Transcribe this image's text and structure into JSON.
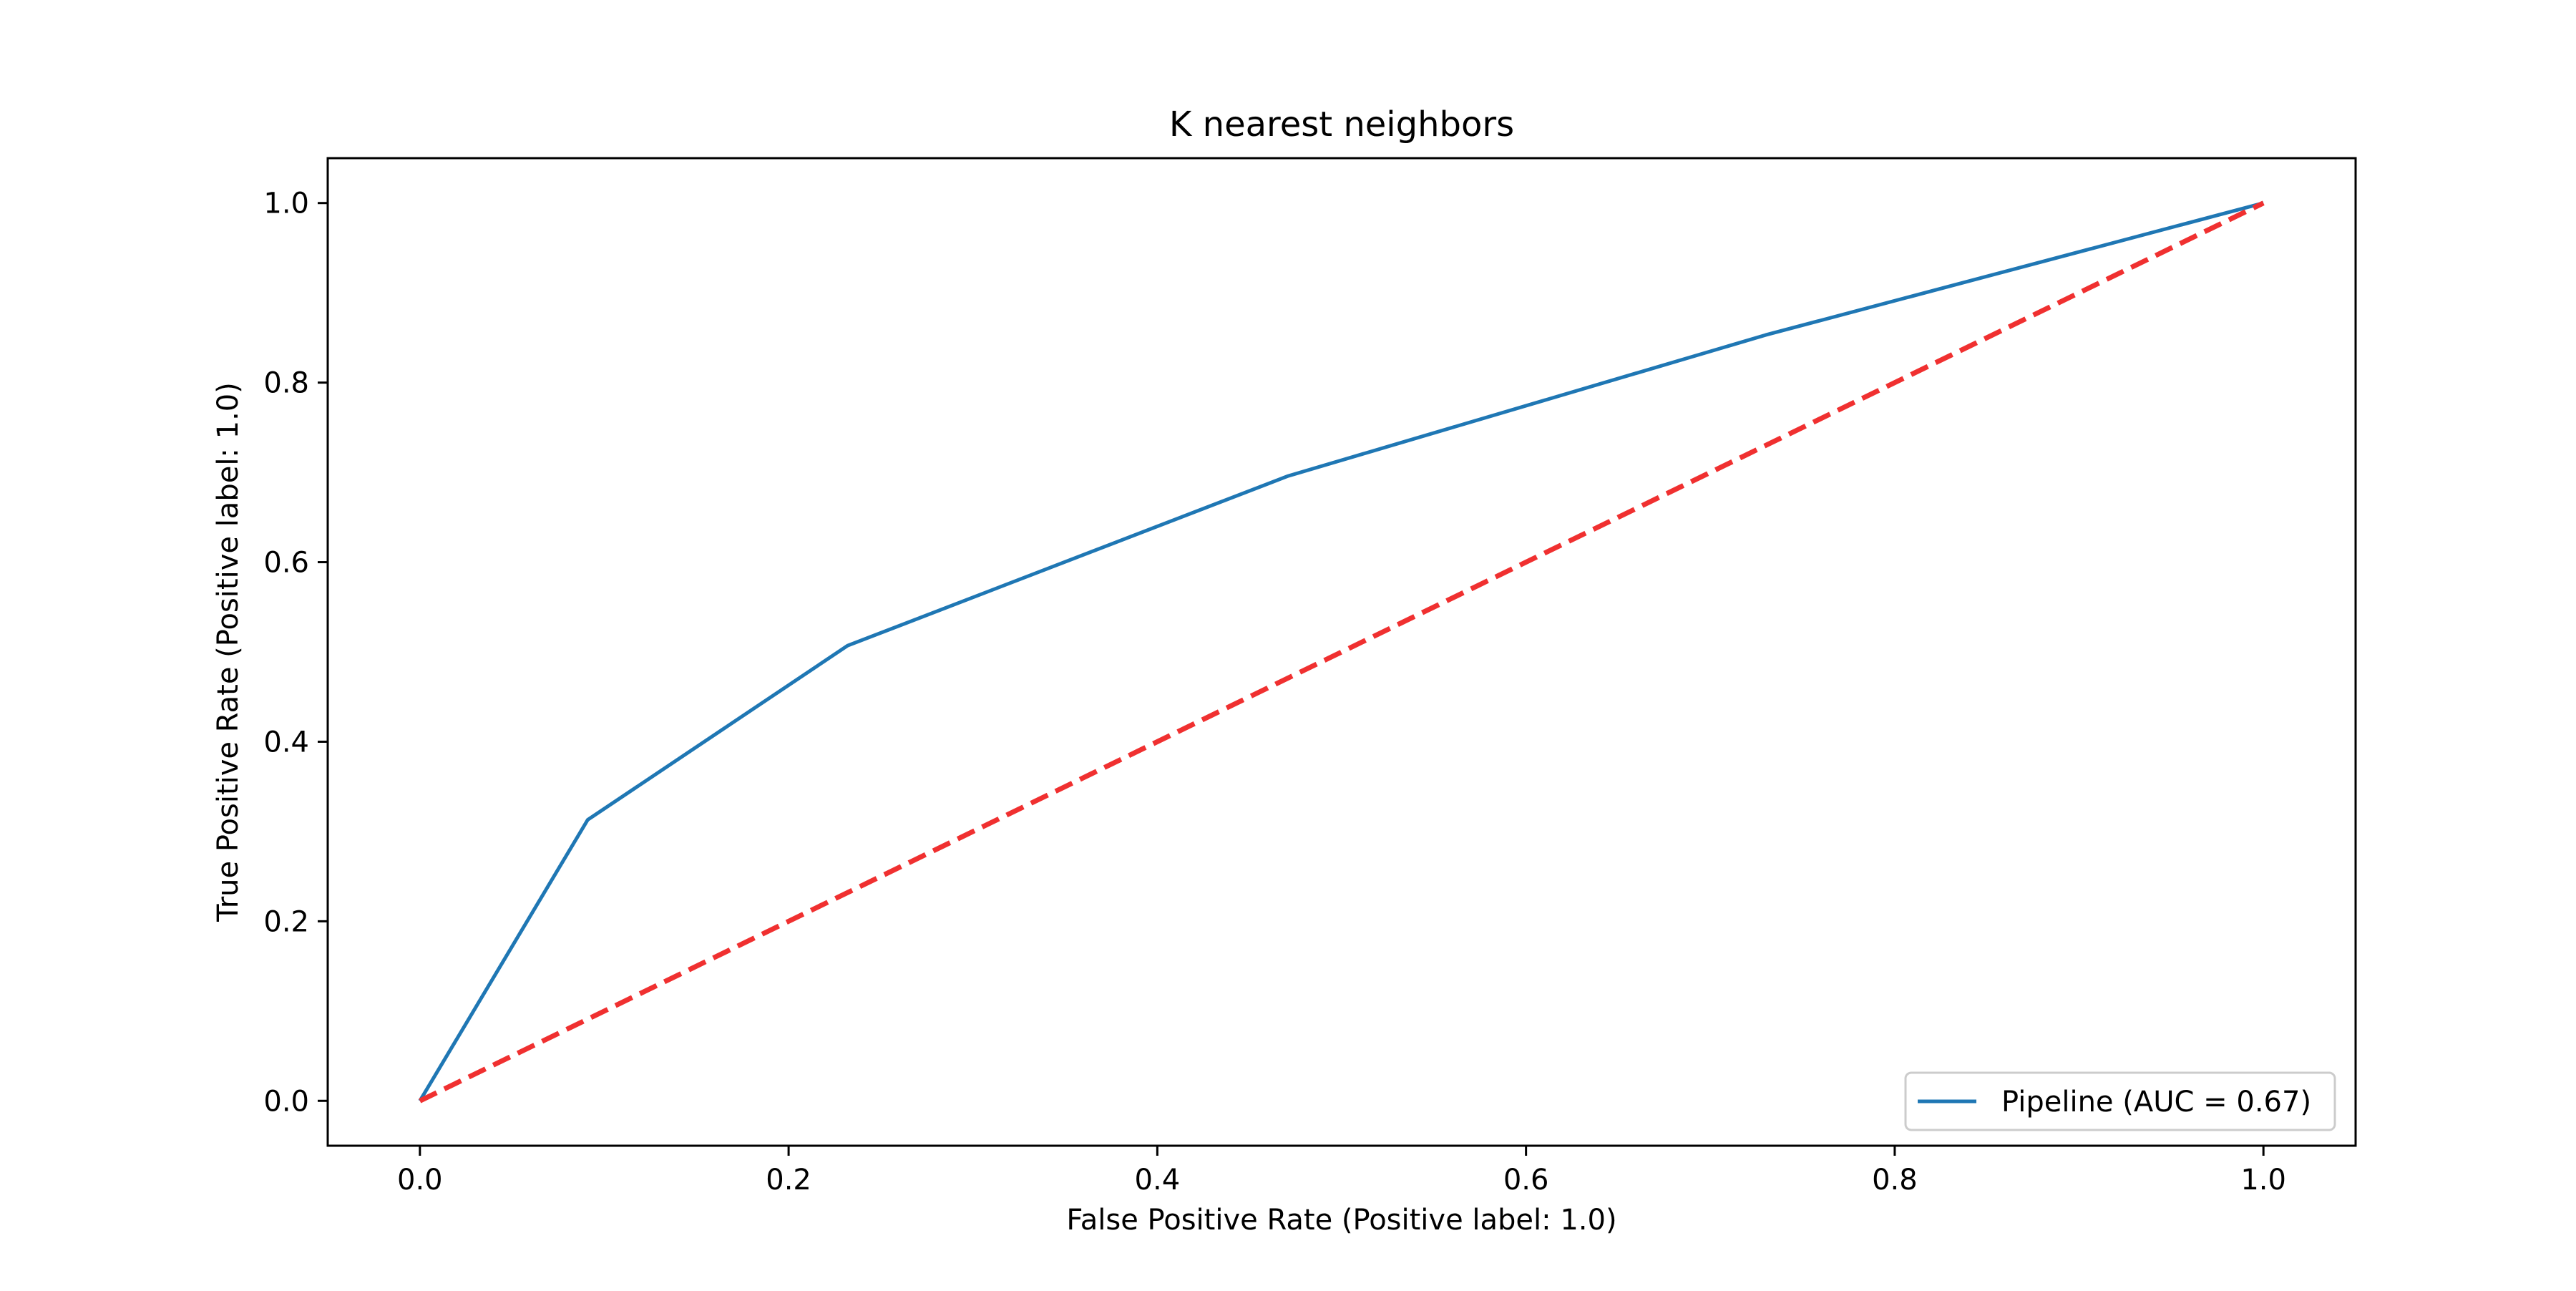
{
  "chart_data": {
    "type": "line",
    "title": "K nearest neighbors",
    "xlabel": "False Positive Rate (Positive label: 1.0)",
    "ylabel": "True Positive Rate (Positive label: 1.0)",
    "xlim": [
      -0.05,
      1.05
    ],
    "ylim": [
      -0.05,
      1.05
    ],
    "x_ticks": [
      0.0,
      0.2,
      0.4,
      0.6,
      0.8,
      1.0
    ],
    "y_ticks": [
      0.0,
      0.2,
      0.4,
      0.6,
      0.8,
      1.0
    ],
    "x_tick_labels": [
      "0.0",
      "0.2",
      "0.4",
      "0.6",
      "0.8",
      "1.0"
    ],
    "y_tick_labels": [
      "0.0",
      "0.2",
      "0.4",
      "0.6",
      "0.8",
      "1.0"
    ],
    "grid": false,
    "legend_position": "lower-right",
    "series": [
      {
        "name": "Pipeline (AUC = 0.67)",
        "color": "#1f77b4",
        "style": "solid",
        "x": [
          0.0,
          0.091,
          0.232,
          0.471,
          0.73,
          1.0
        ],
        "y": [
          0.0,
          0.313,
          0.507,
          0.696,
          0.853,
          1.0
        ]
      },
      {
        "color": "#f03030",
        "style": "dashed",
        "x": [
          0.0,
          1.0
        ],
        "y": [
          0.0,
          1.0
        ]
      }
    ]
  }
}
